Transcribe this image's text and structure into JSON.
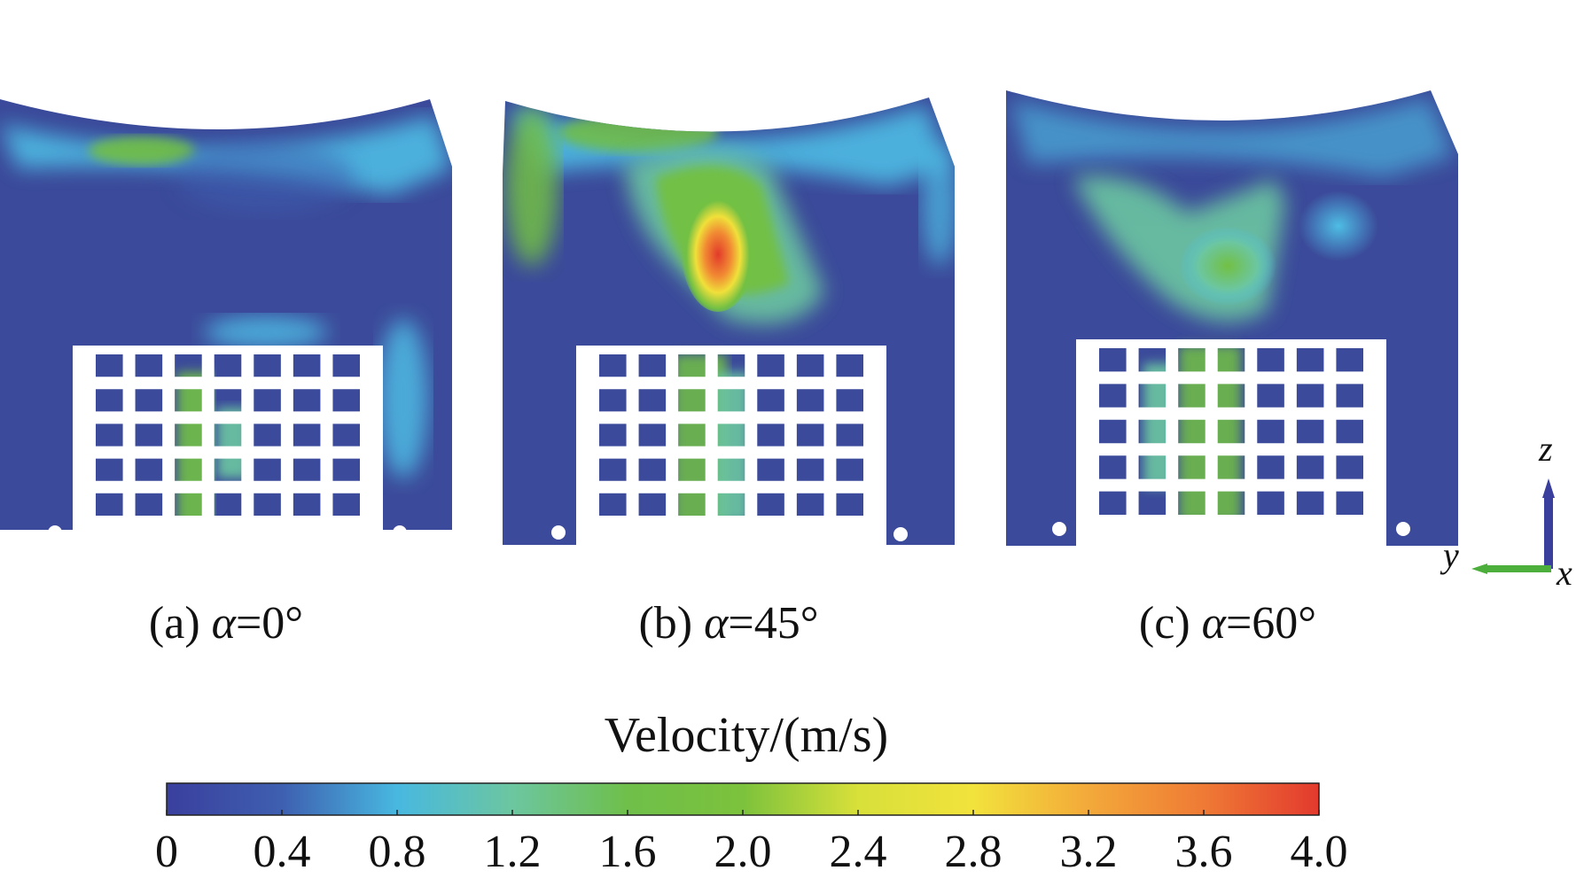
{
  "figure": {
    "panels": [
      {
        "id": "a",
        "prefix": "(a) ",
        "symbol": "α",
        "value": "=0°"
      },
      {
        "id": "b",
        "prefix": "(b) ",
        "symbol": "α",
        "value": "=45°"
      },
      {
        "id": "c",
        "prefix": "(c) ",
        "symbol": "α",
        "value": "=60°"
      }
    ],
    "colorbar": {
      "title": "Velocity/(m/s)",
      "ticks": [
        "0",
        "0.4",
        "0.8",
        "1.2",
        "1.6",
        "2.0",
        "2.4",
        "2.8",
        "3.2",
        "3.6",
        "4.0"
      ],
      "range": [
        0,
        4.0
      ],
      "colors": [
        "#3a3f9e",
        "#3e5fb0",
        "#48b8e0",
        "#6cc6a0",
        "#6fbf4a",
        "#7cc23c",
        "#d8e03a",
        "#f2e23c",
        "#f3a93a",
        "#ef7a35",
        "#e33a2e"
      ]
    },
    "axes": {
      "z": "z",
      "y": "y",
      "x": "x"
    }
  },
  "colors": {
    "background": "#3b4a9a",
    "cyan": "#4fc3e8",
    "green": "#72c044",
    "yellow": "#f0e03a",
    "orange": "#f18a33",
    "red": "#e23a2a",
    "axis_z": "#3a3f9e",
    "axis_y": "#4caf3c"
  }
}
